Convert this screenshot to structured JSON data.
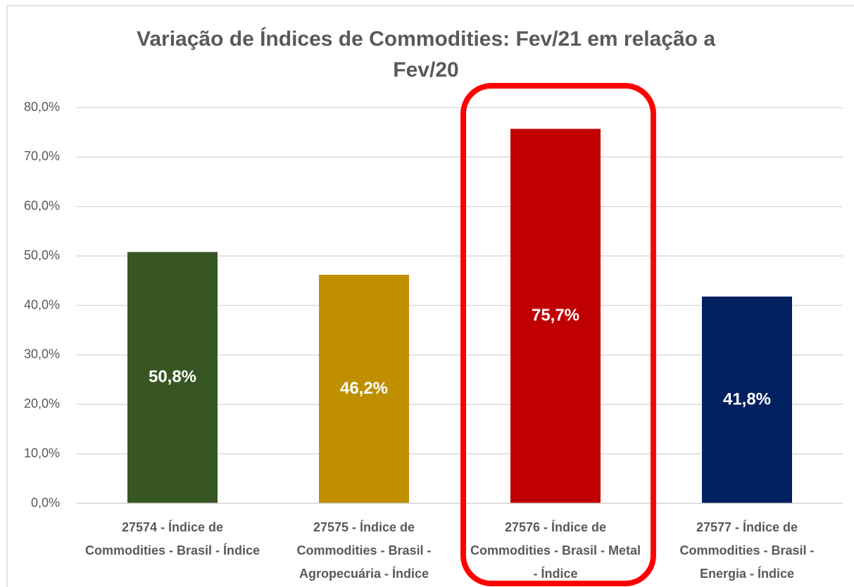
{
  "chart_data": {
    "type": "bar",
    "title": "Variação de Índices de Commodities: Fev/21 em relação a Fev/20",
    "categories": [
      "27574 - Índice de Commodities - Brasil - Índice",
      "27575 - Índice de Commodities - Brasil - Agropecuária - Índice",
      "27576 - Índice de Commodities - Brasil - Metal - Índice",
      "27577 - Índice de Commodities - Brasil - Energia - Índice"
    ],
    "values": [
      50.8,
      46.2,
      75.7,
      41.8
    ],
    "value_labels": [
      "50,8%",
      "46,2%",
      "75,7%",
      "41,8%"
    ],
    "colors": [
      "#375623",
      "#bf8f00",
      "#c00000",
      "#002060"
    ],
    "ylim": [
      0,
      80
    ],
    "yticks": [
      {
        "value": 0,
        "label": "0,0%"
      },
      {
        "value": 10,
        "label": "10,0%"
      },
      {
        "value": 20,
        "label": "20,0%"
      },
      {
        "value": 30,
        "label": "30,0%"
      },
      {
        "value": 40,
        "label": "40,0%"
      },
      {
        "value": 50,
        "label": "50,0%"
      },
      {
        "value": 60,
        "label": "60,0%"
      },
      {
        "value": 70,
        "label": "70,0%"
      },
      {
        "value": 80,
        "label": "80,0%"
      }
    ],
    "grid": true
  }
}
